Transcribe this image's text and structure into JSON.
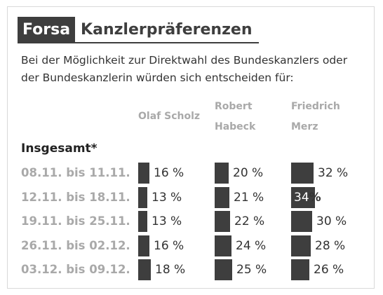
{
  "header": {
    "brand": "Forsa",
    "title": "Kanzlerpräferenzen"
  },
  "subtitle": "Bei der Möglichkeit zur Direktwahl des Bundeskanzlers oder der Bundeskanzlerin würden sich entscheiden für:",
  "section_label": "Insgesamt*",
  "colors": {
    "bar": "#3e3e3e",
    "muted_text": "#a9a9a9",
    "text": "#333333"
  },
  "chart_data": {
    "type": "bar",
    "title": "Kanzlerpräferenzen",
    "unit": "%",
    "categories": [
      "08.11. bis 11.11.",
      "12.11. bis 18.11.",
      "19.11. bis 25.11.",
      "26.11. bis 02.12.",
      "03.12. bis 09.12."
    ],
    "series": [
      {
        "name": "Olaf Scholz",
        "name_lines": [
          "Olaf Scholz"
        ],
        "values": [
          16,
          13,
          13,
          16,
          18
        ]
      },
      {
        "name": "Robert Habeck",
        "name_lines": [
          "Robert",
          "Habeck"
        ],
        "values": [
          20,
          21,
          22,
          24,
          25
        ]
      },
      {
        "name": "Friedrich Merz",
        "name_lines": [
          "Friedrich",
          "Merz"
        ],
        "values": [
          32,
          34,
          30,
          28,
          26
        ]
      }
    ],
    "value_labels": [
      [
        "16 %",
        "20 %",
        "32 %"
      ],
      [
        "13 %",
        "21 %",
        "34 %"
      ],
      [
        "13 %",
        "22 %",
        "30 %"
      ],
      [
        "16 %",
        "24 %",
        "28 %"
      ],
      [
        "18 %",
        "25 %",
        "26 %"
      ]
    ],
    "highlight": {
      "row": 1,
      "series": 2,
      "inside_number": "34",
      "inside_suffix": "%"
    }
  }
}
